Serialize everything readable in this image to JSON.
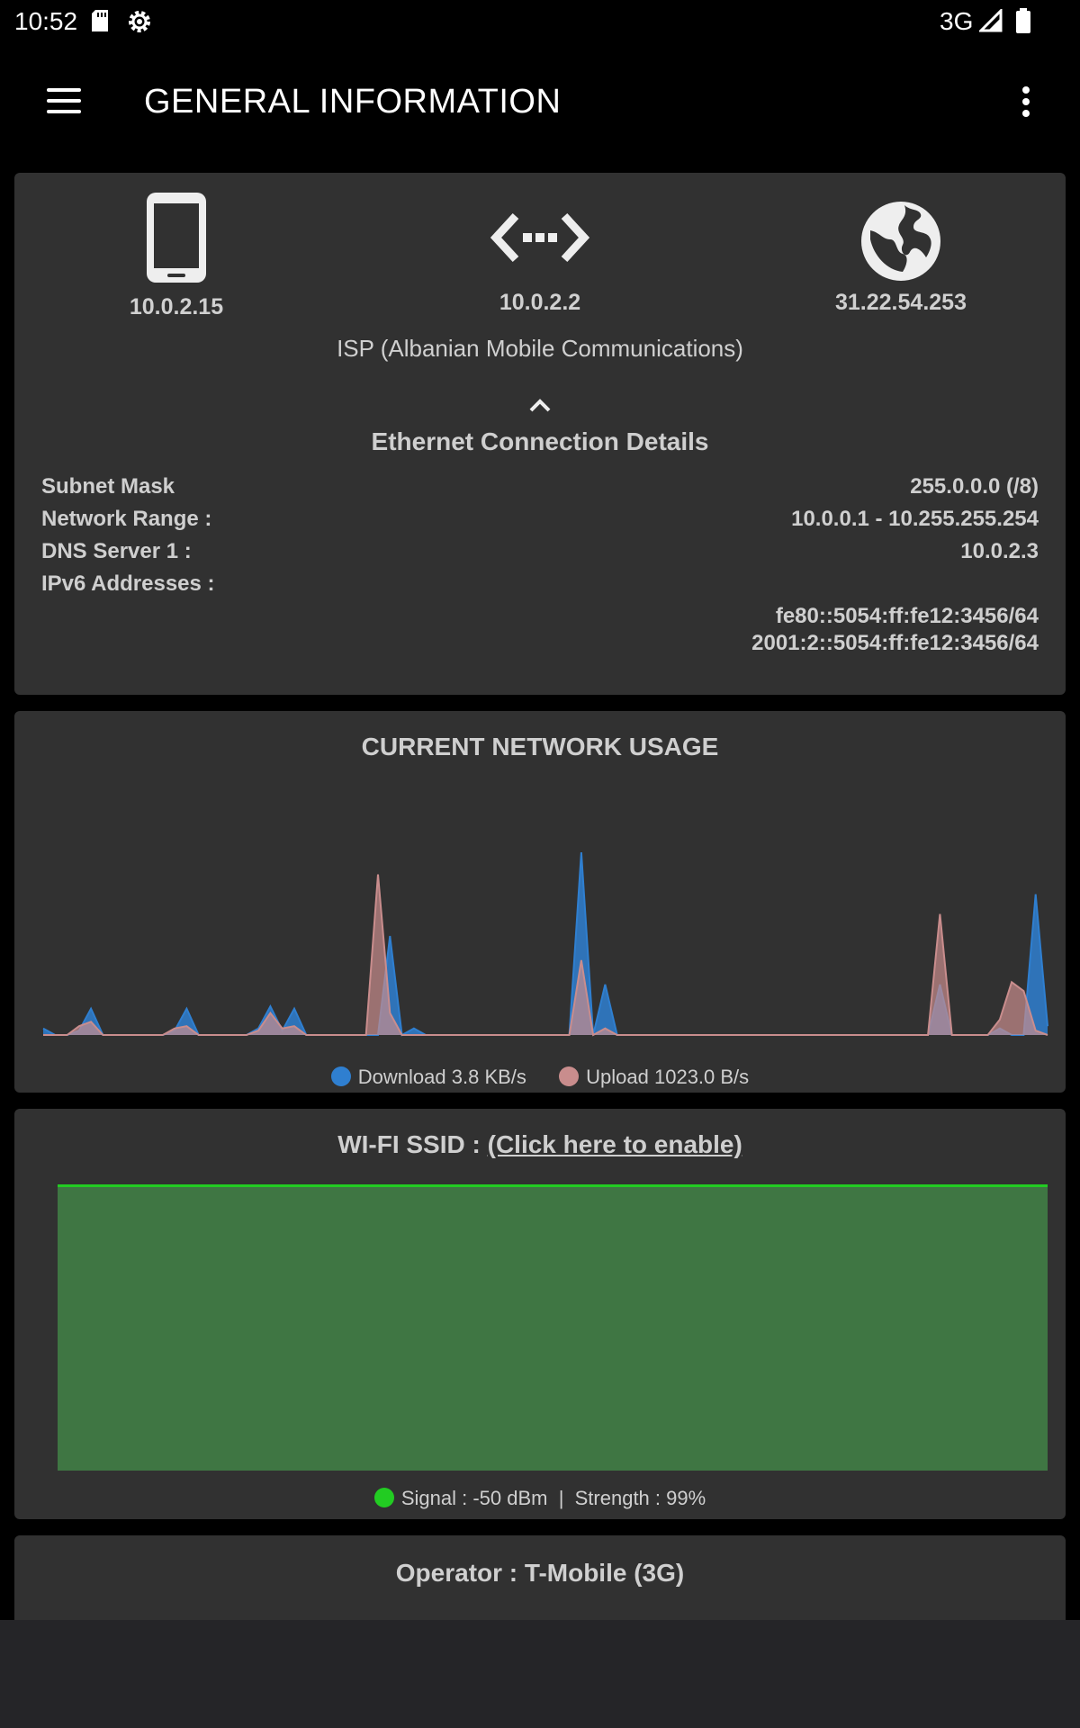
{
  "status_bar": {
    "time": "10:52",
    "network_type": "3G",
    "icons": [
      "sd-card-icon",
      "gear-icon",
      "signal-icon",
      "battery-icon"
    ]
  },
  "toolbar": {
    "title": "GENERAL INFORMATION",
    "icons": [
      "menu-icon",
      "more-vert-icon"
    ]
  },
  "connection": {
    "device_ip": "10.0.2.15",
    "gateway_ip": "10.0.2.2",
    "public_ip": "31.22.54.253",
    "isp": "ISP (Albanian Mobile Communications)",
    "details_title": "Ethernet Connection Details",
    "subnet_mask_label": "Subnet Mask",
    "subnet_mask_value": "255.0.0.0 (/8)",
    "network_range_label": "Network Range :",
    "network_range_value": "10.0.0.1 - 10.255.255.254",
    "dns1_label": "DNS Server 1 :",
    "dns1_value": "10.0.2.3",
    "ipv6_label": "IPv6 Addresses :",
    "ipv6_values": [
      "fe80::5054:ff:fe12:3456/64",
      "2001:2::5054:ff:fe12:3456/64"
    ]
  },
  "network_usage": {
    "title": "CURRENT NETWORK USAGE",
    "download_label": "Download 3.8  KB/s",
    "upload_label": "Upload 1023.0  B/s",
    "download_color": "#2f7fd0",
    "upload_color": "#c98d8d"
  },
  "chart_data": {
    "type": "area",
    "x": [
      0,
      1,
      2,
      3,
      4,
      5,
      6,
      7,
      8,
      9,
      10,
      11,
      12,
      13,
      14,
      15,
      16,
      17,
      18,
      19,
      20,
      21,
      22,
      23,
      24,
      25,
      26,
      27,
      28,
      29,
      30,
      31,
      32,
      33,
      34,
      35,
      36,
      37,
      38,
      39,
      40,
      41,
      42,
      43,
      44,
      45,
      46,
      47,
      48,
      49,
      50,
      51,
      52,
      53,
      54,
      55,
      56,
      57,
      58,
      59,
      60,
      61,
      62,
      63,
      64,
      65,
      66,
      67,
      68,
      69,
      70,
      71,
      72,
      73,
      74,
      75,
      76,
      77,
      78,
      79,
      80,
      81,
      82,
      83,
      84
    ],
    "series": [
      {
        "name": "Download",
        "values": [
          0.3,
          0,
          0,
          0.2,
          1.2,
          0,
          0,
          0,
          0,
          0,
          0,
          0.2,
          1.2,
          0,
          0,
          0,
          0,
          0,
          0.3,
          1.3,
          0.2,
          1.2,
          0,
          0,
          0,
          0,
          0,
          0,
          0,
          4.5,
          0,
          0.3,
          0,
          0,
          0,
          0,
          0,
          0,
          0,
          0,
          0,
          0,
          0,
          0,
          0,
          8.3,
          0,
          2.3,
          0,
          0,
          0,
          0,
          0,
          0,
          0,
          0,
          0,
          0,
          0,
          0,
          0,
          0,
          0,
          0,
          0,
          0,
          0,
          0,
          0,
          0,
          0,
          0,
          0,
          0,
          0,
          2.3,
          0,
          0,
          0,
          0,
          0.3,
          0,
          0,
          6.4,
          0.4
        ]
      },
      {
        "name": "Upload",
        "values": [
          0,
          0,
          0,
          0.4,
          0.6,
          0,
          0,
          0,
          0,
          0,
          0,
          0.3,
          0.4,
          0,
          0,
          0,
          0,
          0,
          0.2,
          1.0,
          0.3,
          0.4,
          0,
          0,
          0,
          0,
          0,
          0,
          7.3,
          1.0,
          0,
          0,
          0,
          0,
          0,
          0,
          0,
          0,
          0,
          0,
          0,
          0,
          0,
          0,
          0,
          3.4,
          0,
          0.3,
          0,
          0,
          0,
          0,
          0,
          0,
          0,
          0,
          0,
          0,
          0,
          0,
          0,
          0,
          0,
          0,
          0,
          0,
          0,
          0,
          0,
          0,
          0,
          0,
          0,
          0,
          0,
          5.5,
          0,
          0,
          0,
          0,
          0.7,
          2.4,
          2.0,
          0.2,
          0
        ]
      }
    ],
    "ylim": [
      0,
      9
    ]
  },
  "wifi": {
    "title_prefix": "WI-FI SSID : ",
    "link_text": "(Click here to enable)",
    "signal_text": "Signal : -50 dBm  |  Strength : 99%",
    "signal_color": "#22cc22",
    "signal_percent": 99
  },
  "operator": {
    "title": "Operator : T-Mobile (3G)"
  }
}
